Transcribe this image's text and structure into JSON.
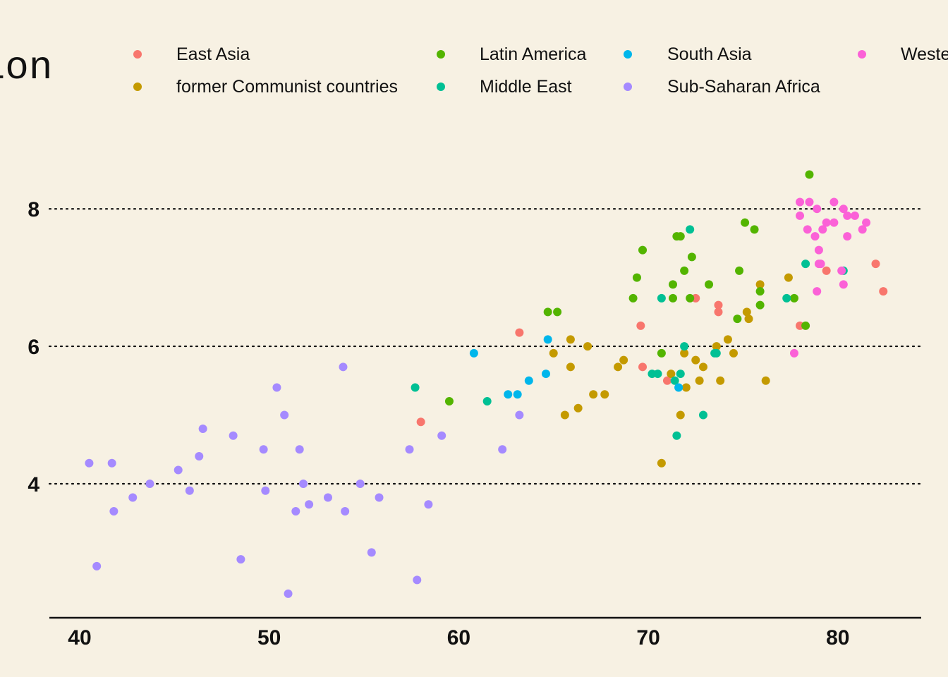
{
  "chart_data": {
    "type": "scatter",
    "legend": {
      "title": "Region",
      "visible_title": "gion",
      "placement": "top",
      "entries": [
        {
          "name": "East Asia",
          "color": "#f8766d"
        },
        {
          "name": "former Communist countries",
          "color": "#c49a00"
        },
        {
          "name": "Latin America",
          "color": "#53b400"
        },
        {
          "name": "Middle East",
          "color": "#00c094"
        },
        {
          "name": "South Asia",
          "color": "#00b6eb"
        },
        {
          "name": "Sub-Saharan Africa",
          "color": "#a58aff"
        },
        {
          "name": "Western Europe",
          "visible_label": "Weste",
          "color": "#fb61d7"
        }
      ]
    },
    "xlim": [
      38.4,
      84.4
    ],
    "ylim": [
      2.05,
      9.1
    ],
    "x_ticks": [
      40,
      50,
      60,
      70,
      80
    ],
    "y_ticks": [
      4,
      6,
      8
    ],
    "grid": "horizontal dotted at y ticks",
    "series": [
      {
        "name": "East Asia",
        "color": "#f8766d",
        "points": [
          [
            58.0,
            4.9
          ],
          [
            63.2,
            6.2
          ],
          [
            69.6,
            6.3
          ],
          [
            69.7,
            5.7
          ],
          [
            71.0,
            5.5
          ],
          [
            72.5,
            6.7
          ],
          [
            73.7,
            6.6
          ],
          [
            73.7,
            6.5
          ],
          [
            78.0,
            6.3
          ],
          [
            79.4,
            7.1
          ],
          [
            82.0,
            7.2
          ],
          [
            82.4,
            6.8
          ]
        ]
      },
      {
        "name": "former Communist countries",
        "color": "#c49a00",
        "points": [
          [
            65.0,
            5.9
          ],
          [
            65.6,
            5.0
          ],
          [
            65.9,
            6.1
          ],
          [
            65.9,
            5.7
          ],
          [
            66.3,
            5.1
          ],
          [
            66.8,
            6.0
          ],
          [
            67.1,
            5.3
          ],
          [
            67.7,
            5.3
          ],
          [
            68.4,
            5.7
          ],
          [
            68.7,
            5.8
          ],
          [
            70.7,
            4.3
          ],
          [
            71.2,
            5.6
          ],
          [
            71.7,
            5.0
          ],
          [
            71.9,
            5.9
          ],
          [
            72.0,
            5.4
          ],
          [
            72.5,
            5.8
          ],
          [
            72.7,
            5.5
          ],
          [
            72.9,
            5.7
          ],
          [
            73.6,
            6.0
          ],
          [
            73.8,
            5.5
          ],
          [
            74.2,
            6.1
          ],
          [
            74.5,
            5.9
          ],
          [
            75.2,
            6.5
          ],
          [
            75.3,
            6.4
          ],
          [
            75.9,
            6.9
          ],
          [
            76.2,
            5.5
          ],
          [
            77.4,
            7.0
          ]
        ]
      },
      {
        "name": "Latin America",
        "color": "#53b400",
        "points": [
          [
            59.5,
            5.2
          ],
          [
            64.7,
            6.5
          ],
          [
            65.2,
            6.5
          ],
          [
            69.2,
            6.7
          ],
          [
            69.4,
            7.0
          ],
          [
            69.7,
            7.4
          ],
          [
            70.7,
            5.9
          ],
          [
            71.3,
            6.9
          ],
          [
            71.3,
            6.7
          ],
          [
            71.5,
            7.6
          ],
          [
            71.7,
            7.6
          ],
          [
            71.9,
            7.1
          ],
          [
            72.2,
            6.7
          ],
          [
            72.3,
            7.3
          ],
          [
            73.2,
            6.9
          ],
          [
            74.7,
            6.4
          ],
          [
            74.8,
            7.1
          ],
          [
            75.1,
            7.8
          ],
          [
            75.6,
            7.7
          ],
          [
            75.9,
            6.8
          ],
          [
            75.9,
            6.6
          ],
          [
            77.7,
            6.7
          ],
          [
            78.3,
            6.3
          ],
          [
            78.5,
            8.5
          ]
        ]
      },
      {
        "name": "Middle East",
        "color": "#00c094",
        "points": [
          [
            57.7,
            5.4
          ],
          [
            61.5,
            5.2
          ],
          [
            70.2,
            5.6
          ],
          [
            70.5,
            5.6
          ],
          [
            70.7,
            6.7
          ],
          [
            71.4,
            5.5
          ],
          [
            71.5,
            4.7
          ],
          [
            71.7,
            5.6
          ],
          [
            71.9,
            6.0
          ],
          [
            72.2,
            7.7
          ],
          [
            72.9,
            5.0
          ],
          [
            73.5,
            5.9
          ],
          [
            73.6,
            5.9
          ],
          [
            77.3,
            6.7
          ],
          [
            78.3,
            7.2
          ],
          [
            80.3,
            7.1
          ]
        ]
      },
      {
        "name": "South Asia",
        "color": "#00b6eb",
        "points": [
          [
            60.8,
            5.9
          ],
          [
            62.6,
            5.3
          ],
          [
            63.1,
            5.3
          ],
          [
            63.7,
            5.5
          ],
          [
            64.6,
            5.6
          ],
          [
            64.7,
            6.1
          ],
          [
            71.6,
            5.4
          ]
        ]
      },
      {
        "name": "Sub-Saharan Africa",
        "color": "#a58aff",
        "points": [
          [
            40.5,
            4.3
          ],
          [
            40.9,
            2.8
          ],
          [
            41.7,
            4.3
          ],
          [
            41.8,
            3.6
          ],
          [
            42.8,
            3.8
          ],
          [
            43.7,
            4.0
          ],
          [
            45.2,
            4.2
          ],
          [
            45.8,
            3.9
          ],
          [
            46.3,
            4.4
          ],
          [
            46.5,
            4.8
          ],
          [
            48.1,
            4.7
          ],
          [
            48.5,
            2.9
          ],
          [
            49.7,
            4.5
          ],
          [
            49.8,
            3.9
          ],
          [
            50.4,
            5.4
          ],
          [
            50.8,
            5.0
          ],
          [
            51.0,
            2.4
          ],
          [
            51.4,
            3.6
          ],
          [
            51.6,
            4.5
          ],
          [
            51.8,
            4.0
          ],
          [
            52.1,
            3.7
          ],
          [
            53.1,
            3.8
          ],
          [
            53.9,
            5.7
          ],
          [
            54.0,
            3.6
          ],
          [
            54.8,
            4.0
          ],
          [
            55.4,
            3.0
          ],
          [
            55.8,
            3.8
          ],
          [
            57.4,
            4.5
          ],
          [
            57.8,
            2.6
          ],
          [
            58.4,
            3.7
          ],
          [
            59.1,
            4.7
          ],
          [
            62.3,
            4.5
          ],
          [
            63.2,
            5.0
          ]
        ]
      },
      {
        "name": "Western Europe",
        "color": "#fb61d7",
        "points": [
          [
            77.7,
            5.9
          ],
          [
            78.0,
            8.1
          ],
          [
            78.0,
            7.9
          ],
          [
            78.4,
            7.7
          ],
          [
            78.5,
            8.1
          ],
          [
            78.8,
            7.6
          ],
          [
            78.9,
            6.8
          ],
          [
            78.9,
            8.0
          ],
          [
            79.0,
            7.4
          ],
          [
            79.0,
            7.2
          ],
          [
            79.1,
            7.2
          ],
          [
            79.2,
            7.7
          ],
          [
            79.4,
            7.8
          ],
          [
            79.8,
            7.8
          ],
          [
            79.8,
            8.1
          ],
          [
            80.2,
            7.1
          ],
          [
            80.3,
            8.0
          ],
          [
            80.3,
            6.9
          ],
          [
            80.5,
            7.9
          ],
          [
            80.5,
            7.6
          ],
          [
            80.9,
            7.9
          ],
          [
            81.3,
            7.7
          ],
          [
            81.5,
            7.8
          ]
        ]
      }
    ]
  }
}
